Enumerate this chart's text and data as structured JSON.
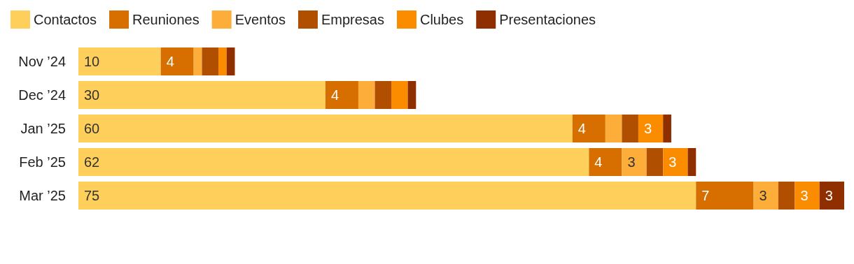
{
  "chart_data": {
    "type": "bar",
    "orientation": "horizontal",
    "stacked": true,
    "legend": "top left",
    "categories": [
      "Nov ’24",
      "Dec ’24",
      "Jan ’25",
      "Feb ’25",
      "Mar ’25"
    ],
    "series": [
      {
        "name": "Contactos",
        "color": "#fecf5a",
        "values": [
          10,
          30,
          60,
          62,
          75
        ],
        "value_labels": [
          "10",
          "30",
          "60",
          "62",
          "75"
        ]
      },
      {
        "name": "Reuniones",
        "color": "#d66f00",
        "values": [
          4,
          4,
          4,
          4,
          7
        ],
        "value_labels": [
          "4",
          "4",
          "4",
          "4",
          "7"
        ]
      },
      {
        "name": "Eventos",
        "color": "#fdad3a",
        "values": [
          1,
          2,
          2,
          3,
          3
        ],
        "value_labels": [
          null,
          null,
          null,
          "3",
          "3"
        ]
      },
      {
        "name": "Empresas",
        "color": "#b04f00",
        "values": [
          2,
          2,
          2,
          2,
          2
        ],
        "value_labels": [
          null,
          null,
          null,
          null,
          null
        ]
      },
      {
        "name": "Clubes",
        "color": "#fb8c00",
        "values": [
          1,
          2,
          3,
          3,
          3
        ],
        "value_labels": [
          null,
          null,
          "3",
          "3",
          "3"
        ]
      },
      {
        "name": "Presentaciones",
        "color": "#8f2f00",
        "values": [
          1,
          1,
          1,
          1,
          3
        ],
        "value_labels": [
          null,
          null,
          null,
          null,
          "3"
        ]
      }
    ]
  }
}
